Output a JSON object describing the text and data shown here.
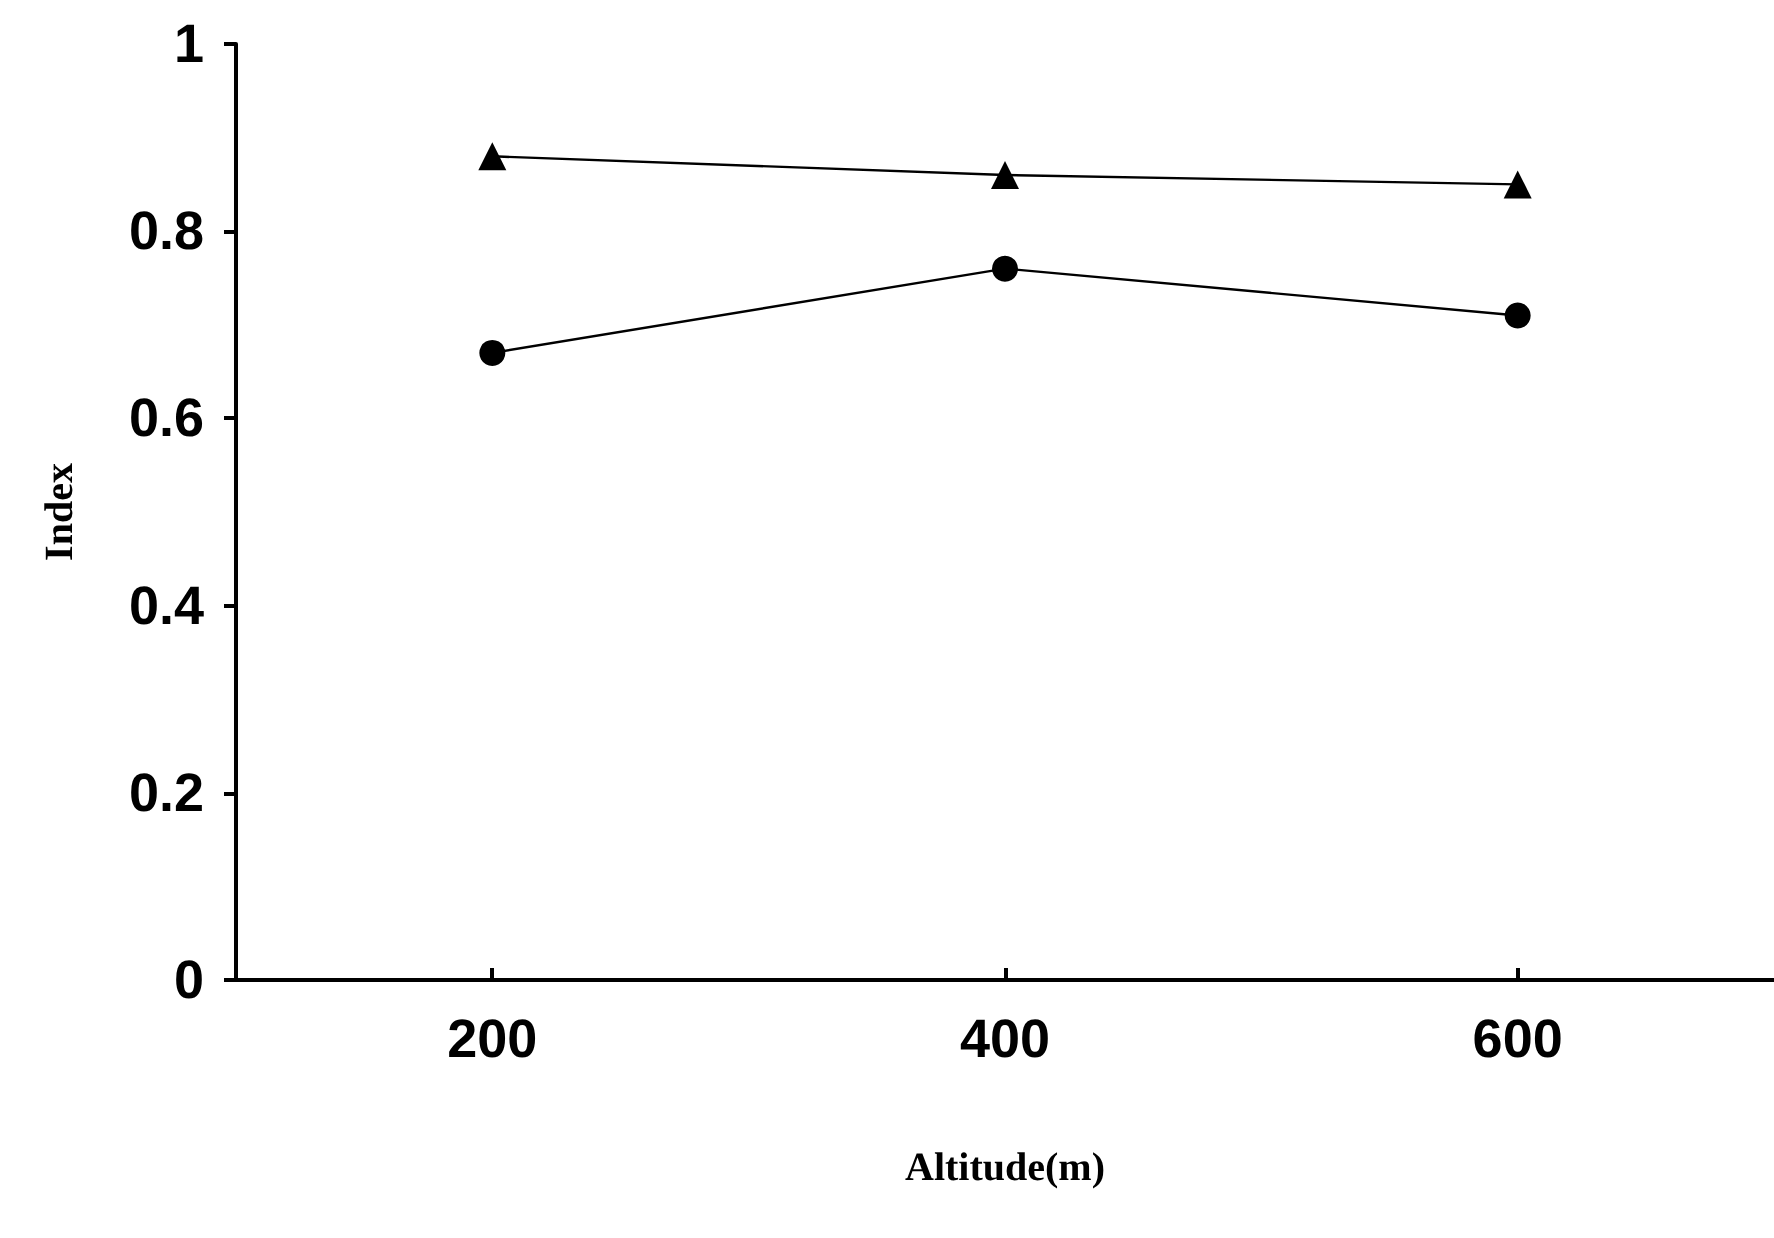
{
  "chart_data": {
    "type": "line",
    "xlabel": "Altitude(m)",
    "ylabel": "Index",
    "x": [
      200,
      400,
      600
    ],
    "series": [
      {
        "color": "#000000",
        "marker": "triangle",
        "values": [
          0.88,
          0.86,
          0.85
        ]
      },
      {
        "color": "#000000",
        "marker": "circle",
        "values": [
          0.67,
          0.76,
          0.71
        ]
      }
    ],
    "xlim": [
      100,
      700
    ],
    "xticks": [
      200,
      400,
      600
    ],
    "ylim": [
      0,
      1
    ],
    "yticks": [
      0,
      0.2,
      0.4,
      0.6,
      0.8,
      1
    ],
    "grid": false,
    "line_style": "solid"
  }
}
